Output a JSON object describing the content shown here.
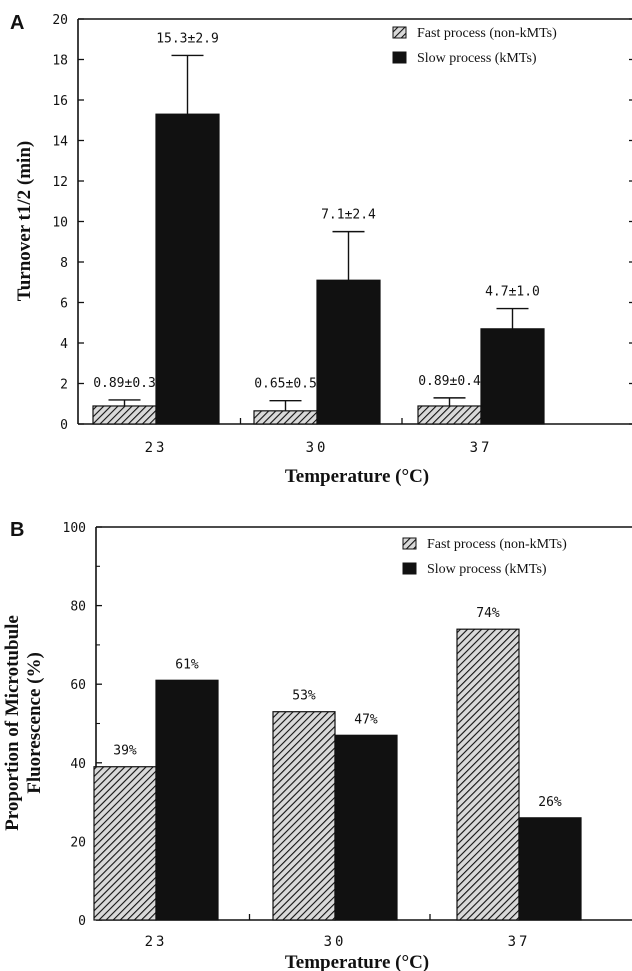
{
  "chart_data": [
    {
      "panel": "A",
      "type": "bar",
      "categories": [
        "23",
        "30",
        "37"
      ],
      "xlabel": "Temperature (°C)",
      "ylabel": "Turnover t1/2 (min)",
      "ylim": [
        0,
        20
      ],
      "yticks": [
        0,
        2,
        4,
        6,
        8,
        10,
        12,
        14,
        16,
        18,
        20
      ],
      "legend_position": "top-right",
      "series": [
        {
          "name": "Fast process (non-kMTs)",
          "values": [
            0.89,
            0.65,
            0.89
          ],
          "errors": [
            0.3,
            0.5,
            0.4
          ],
          "labels": [
            "0.89±0.3",
            "0.65±0.5",
            "0.89±0.4"
          ],
          "fill": "hatched"
        },
        {
          "name": "Slow process (kMTs)",
          "values": [
            15.3,
            7.1,
            4.7
          ],
          "errors": [
            2.9,
            2.4,
            1.0
          ],
          "labels": [
            "15.3±2.9",
            "7.1±2.4",
            "4.7±1.0"
          ],
          "fill": "solid"
        }
      ]
    },
    {
      "panel": "B",
      "type": "bar",
      "categories": [
        "23",
        "30",
        "37"
      ],
      "xlabel": "Temperature (°C)",
      "ylabel": "Proportion of Microtubule Fluorescence (%)",
      "ylabel_lines": [
        "Proportion of Microtubule",
        "Fluorescence (%)"
      ],
      "ylim": [
        0,
        100
      ],
      "yticks": [
        0,
        20,
        40,
        60,
        80,
        100
      ],
      "legend_position": "top-right",
      "series": [
        {
          "name": "Fast process (non-kMTs)",
          "values": [
            39,
            53,
            74
          ],
          "labels": [
            "39%",
            "53%",
            "74%"
          ],
          "fill": "hatched"
        },
        {
          "name": "Slow process (kMTs)",
          "values": [
            61,
            47,
            26
          ],
          "labels": [
            "61%",
            "47%",
            "26%"
          ],
          "fill": "solid"
        }
      ]
    }
  ],
  "colors": {
    "ink": "#111111",
    "hatch_bg": "#d9d9d9",
    "solid": "#111111"
  }
}
